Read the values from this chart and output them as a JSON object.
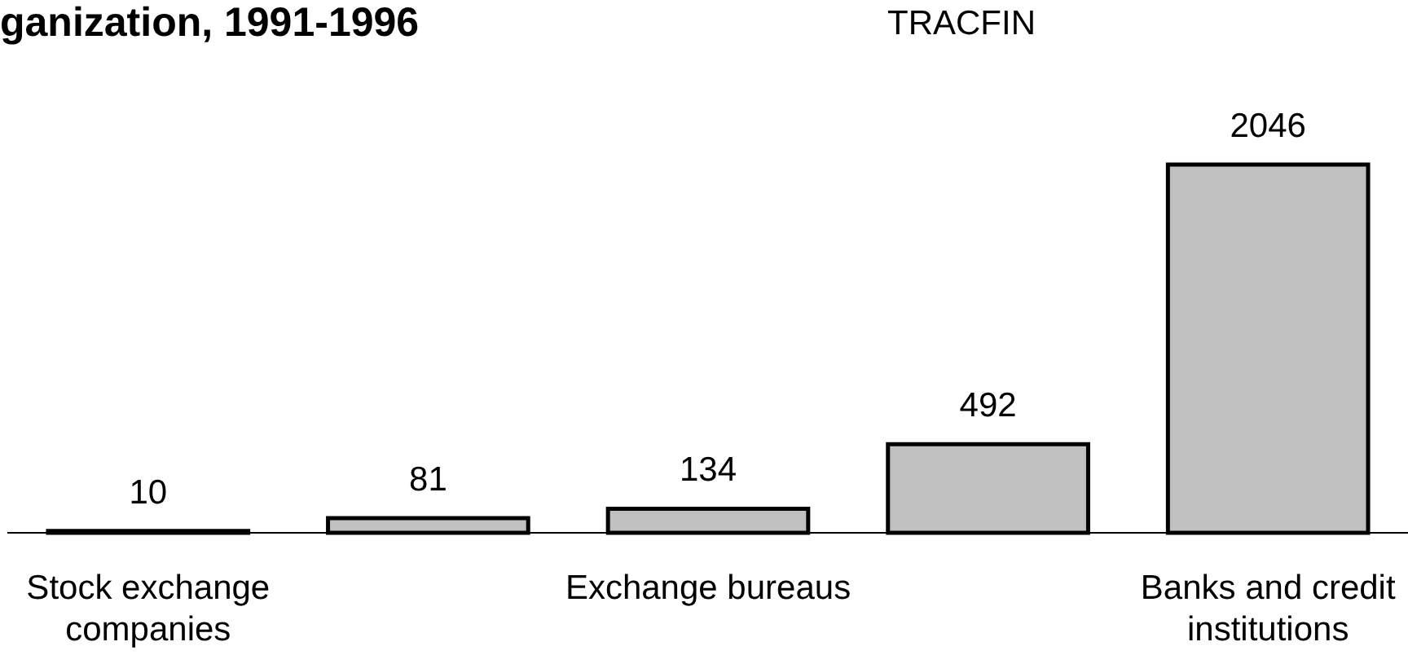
{
  "chart_data": {
    "type": "bar",
    "title": "ganization, 1991-1996",
    "subtitle": "TRACFIN",
    "categories": [
      "Stock exchange companies",
      null,
      "Exchange bureaus",
      null,
      "Banks and credit institutions"
    ],
    "values": [
      10,
      81,
      134,
      492,
      2046
    ],
    "color": "#c0c0c0",
    "data_labels": true
  }
}
